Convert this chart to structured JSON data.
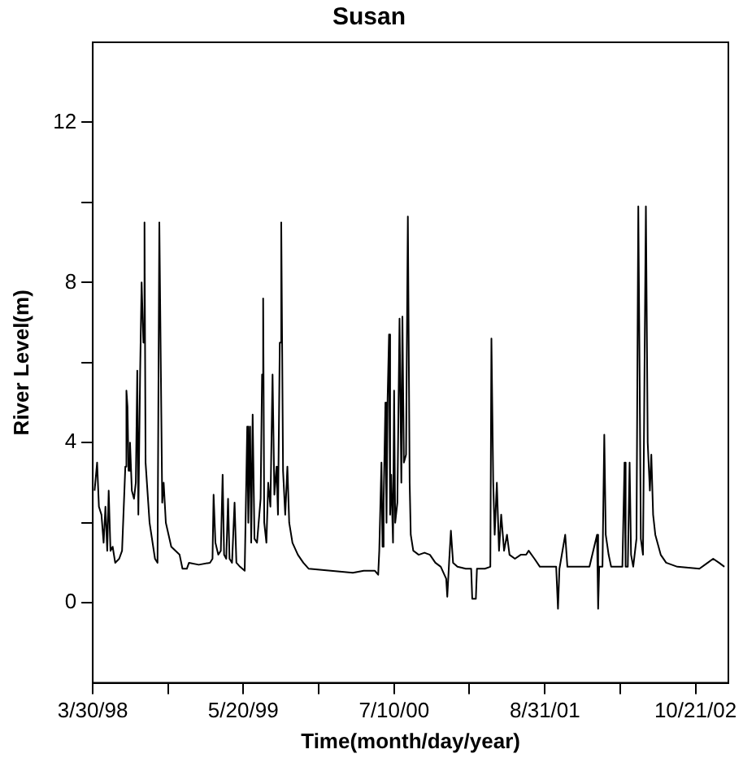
{
  "chart_data": {
    "type": "line",
    "title": "Susan",
    "xlabel": "Time(month/day/year)",
    "ylabel": "River Level(m)",
    "x": [
      "1998-04-04",
      "1998-04-11",
      "1998-04-16",
      "1998-04-23",
      "1998-04-29",
      "1998-05-04",
      "1998-05-09",
      "1998-05-13",
      "1998-05-18",
      "1998-05-24",
      "1998-05-31",
      "1998-06-11",
      "1998-06-19",
      "1998-06-28",
      "1998-07-01",
      "1998-07-04",
      "1998-07-07",
      "1998-07-11",
      "1998-07-16",
      "1998-07-22",
      "1998-07-27",
      "1998-07-31",
      "1998-08-03",
      "1998-08-08",
      "1998-08-12",
      "1998-08-17",
      "1998-08-20",
      "1998-08-23",
      "1998-09-03",
      "1998-09-18",
      "1998-09-25",
      "1998-09-30",
      "1998-10-04",
      "1998-10-08",
      "1998-10-12",
      "1998-10-18",
      "1998-11-02",
      "1998-11-25",
      "1998-12-03",
      "1998-12-15",
      "1998-12-21",
      "1999-01-17",
      "1999-02-17",
      "1999-02-24",
      "1999-02-27",
      "1999-03-04",
      "1999-03-12",
      "1999-03-19",
      "1999-03-24",
      "1999-03-28",
      "1999-04-03",
      "1999-04-08",
      "1999-04-12",
      "1999-04-19",
      "1999-04-26",
      "1999-05-01",
      "1999-05-11",
      "1999-05-24",
      "1999-05-31",
      "1999-06-03",
      "1999-06-08",
      "1999-06-11",
      "1999-06-15",
      "1999-06-20",
      "1999-06-27",
      "1999-07-07",
      "1999-07-11",
      "1999-07-14",
      "1999-07-17",
      "1999-07-23",
      "1999-07-28",
      "1999-08-03",
      "1999-08-09",
      "1999-08-14",
      "1999-08-20",
      "1999-08-24",
      "1999-08-29",
      "1999-09-02",
      "1999-09-07",
      "1999-09-13",
      "1999-09-19",
      "1999-09-24",
      "1999-10-03",
      "1999-10-18",
      "1999-11-02",
      "1999-11-17",
      "2000-01-17",
      "2000-03-18",
      "2000-04-17",
      "2000-05-18",
      "2000-05-27",
      "2000-05-30",
      "2000-06-05",
      "2000-06-08",
      "2000-06-11",
      "2000-06-16",
      "2000-06-19",
      "2000-06-22",
      "2000-06-26",
      "2000-06-29",
      "2000-07-02",
      "2000-07-07",
      "2000-07-10",
      "2000-07-13",
      "2000-07-19",
      "2000-07-25",
      "2000-07-30",
      "2000-08-02",
      "2000-08-06",
      "2000-08-12",
      "2000-08-17",
      "2000-08-22",
      "2000-08-25",
      "2000-09-01",
      "2000-09-16",
      "2000-10-02",
      "2000-10-17",
      "2000-11-01",
      "2000-11-16",
      "2000-12-01",
      "2000-12-04",
      "2000-12-09",
      "2000-12-14",
      "2000-12-20",
      "2001-01-01",
      "2001-01-24",
      "2001-02-08",
      "2001-02-11",
      "2001-02-21",
      "2001-02-24",
      "2001-03-18",
      "2001-04-02",
      "2001-04-05",
      "2001-04-10",
      "2001-04-14",
      "2001-04-20",
      "2001-04-26",
      "2001-05-02",
      "2001-05-10",
      "2001-05-18",
      "2001-05-25",
      "2001-06-09",
      "2001-06-25",
      "2001-07-10",
      "2001-07-17",
      "2001-08-02",
      "2001-08-17",
      "2001-10-01",
      "2001-10-06",
      "2001-10-10",
      "2001-10-26",
      "2001-11-01",
      "2002-01-01",
      "2002-01-22",
      "2002-01-25",
      "2002-01-28",
      "2002-02-06",
      "2002-02-11",
      "2002-02-15",
      "2002-02-23",
      "2002-03-02",
      "2002-04-02",
      "2002-04-08",
      "2002-04-11",
      "2002-04-17",
      "2002-04-22",
      "2002-04-26",
      "2002-05-02",
      "2002-05-11",
      "2002-05-16",
      "2002-05-20",
      "2002-05-23",
      "2002-05-29",
      "2002-06-06",
      "2002-06-11",
      "2002-06-17",
      "2002-06-21",
      "2002-06-26",
      "2002-07-02",
      "2002-07-17",
      "2002-08-01",
      "2002-09-01",
      "2002-11-01",
      "2002-11-24",
      "2002-12-09",
      "2002-12-25",
      "2003-01-09"
    ],
    "series": [
      {
        "color": "#000000",
        "values": [
          2.8,
          3.5,
          2.4,
          2.2,
          1.5,
          2.4,
          1.3,
          2.8,
          1.3,
          1.4,
          1.0,
          1.1,
          1.3,
          3.4,
          5.3,
          4.9,
          3.3,
          4.0,
          2.8,
          2.6,
          3.0,
          5.8,
          2.2,
          5.8,
          8.0,
          6.5,
          9.5,
          3.5,
          2.0,
          1.1,
          1.0,
          9.5,
          9.5,
          2.5,
          3.0,
          2.0,
          1.4,
          1.2,
          0.85,
          0.85,
          1.0,
          0.95,
          1.0,
          1.1,
          2.7,
          1.5,
          1.2,
          1.3,
          3.2,
          1.2,
          1.1,
          2.6,
          1.1,
          1.0,
          2.5,
          1.0,
          0.9,
          0.8,
          4.4,
          2.0,
          4.4,
          1.5,
          4.7,
          1.6,
          1.5,
          2.6,
          5.7,
          7.6,
          2.0,
          1.5,
          3.0,
          2.4,
          5.7,
          2.7,
          3.4,
          2.2,
          6.5,
          9.5,
          3.3,
          2.2,
          3.4,
          2.0,
          1.5,
          1.2,
          1.0,
          0.85,
          0.8,
          0.75,
          0.8,
          0.8,
          0.7,
          1.3,
          3.5,
          1.4,
          2.5,
          5.0,
          2.0,
          5.1,
          6.7,
          2.2,
          3.2,
          1.5,
          5.3,
          2.0,
          2.5,
          7.1,
          3.0,
          7.15,
          3.5,
          3.7,
          9.65,
          3.0,
          1.7,
          1.3,
          1.2,
          1.25,
          1.2,
          1.0,
          0.9,
          0.6,
          0.15,
          1.0,
          1.8,
          1.0,
          0.9,
          0.85,
          0.85,
          0.1,
          0.1,
          0.85,
          0.85,
          0.9,
          6.6,
          3.0,
          1.7,
          3.0,
          1.3,
          2.2,
          1.3,
          1.7,
          1.2,
          1.1,
          1.2,
          1.2,
          1.3,
          1.1,
          0.9,
          0.9,
          -0.15,
          0.85,
          1.7,
          0.9,
          0.9,
          1.7,
          -0.15,
          0.9,
          0.9,
          4.2,
          1.7,
          1.2,
          0.9,
          0.9,
          3.5,
          0.9,
          0.9,
          3.5,
          1.2,
          0.9,
          1.6,
          9.9,
          5.3,
          1.6,
          1.2,
          9.9,
          4.0,
          2.8,
          3.7,
          2.2,
          1.7,
          1.2,
          1.0,
          0.9,
          0.85,
          1.0,
          1.1,
          1.0,
          0.9
        ]
      }
    ],
    "xlim": [
      "1998-03-30",
      "2003-01-20"
    ],
    "xticks": [
      {
        "value": "1998-03-30",
        "label": "3/30/98"
      },
      {
        "value": "1998-10-24",
        "label": null
      },
      {
        "value": "1999-05-20",
        "label": "5/20/99"
      },
      {
        "value": "1999-12-14",
        "label": null
      },
      {
        "value": "2000-07-10",
        "label": "7/10/00"
      },
      {
        "value": "2001-02-03",
        "label": null
      },
      {
        "value": "2001-08-31",
        "label": "8/31/01"
      },
      {
        "value": "2002-03-27",
        "label": null
      },
      {
        "value": "2002-10-21",
        "label": "10/21/02"
      }
    ],
    "ylim": [
      -2,
      14
    ],
    "yticks": [
      0,
      {
        "value": 2,
        "label": null
      },
      4,
      {
        "value": 6,
        "label": null
      },
      8,
      {
        "value": 10,
        "label": null
      },
      12
    ],
    "grid": false,
    "legend": false,
    "marker": "none",
    "line_style": "solid"
  }
}
